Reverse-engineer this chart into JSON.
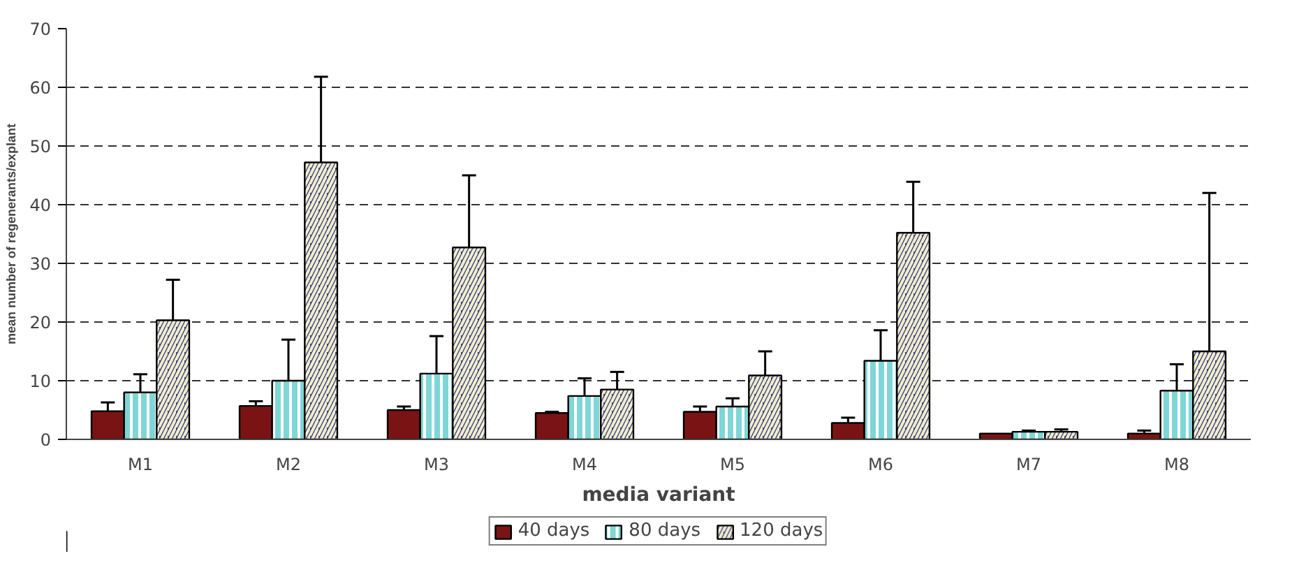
{
  "chart_data": {
    "type": "bar",
    "xlabel": "media variant",
    "ylabel": "mean number of regenerants/explant",
    "categories": [
      "M1",
      "M2",
      "M3",
      "M4",
      "M5",
      "M6",
      "M7",
      "M8"
    ],
    "series": [
      {
        "name": "40 days",
        "color": "#7a1414",
        "values": [
          4.8,
          5.7,
          5.0,
          4.5,
          4.7,
          2.8,
          1.0,
          1.0
        ],
        "errors": [
          [
            4.8,
            6.3
          ],
          [
            5.7,
            6.5
          ],
          [
            5.0,
            5.6
          ],
          [
            4.5,
            4.7
          ],
          [
            4.7,
            5.6
          ],
          [
            2.8,
            3.7
          ],
          null,
          [
            1.0,
            1.5
          ]
        ]
      },
      {
        "name": "80 days",
        "color": "#7fd6d6",
        "values": [
          8.0,
          10.0,
          11.2,
          7.4,
          5.6,
          13.4,
          1.3,
          8.3
        ],
        "errors": [
          [
            8.0,
            11.1
          ],
          [
            10.0,
            17.0
          ],
          [
            11.2,
            17.6
          ],
          [
            7.4,
            10.4
          ],
          [
            5.6,
            7.0
          ],
          [
            13.4,
            18.6
          ],
          [
            1.3,
            1.5
          ],
          [
            8.3,
            12.8
          ]
        ]
      },
      {
        "name": "120 days",
        "color": "#3a3f8c",
        "values": [
          20.3,
          47.2,
          32.7,
          8.5,
          10.9,
          35.2,
          1.3,
          15.0
        ],
        "errors": [
          [
            20.3,
            27.2
          ],
          [
            47.2,
            61.8
          ],
          [
            32.7,
            45.0
          ],
          [
            8.5,
            11.5
          ],
          [
            10.9,
            15.0
          ],
          [
            35.2,
            43.9
          ],
          [
            1.3,
            1.7
          ],
          [
            15.0,
            42.0
          ]
        ]
      }
    ],
    "ylim": [
      0,
      70
    ],
    "yticks": [
      0,
      10,
      20,
      30,
      40,
      50,
      60,
      70
    ],
    "grid": "y",
    "legend": "bottom"
  }
}
